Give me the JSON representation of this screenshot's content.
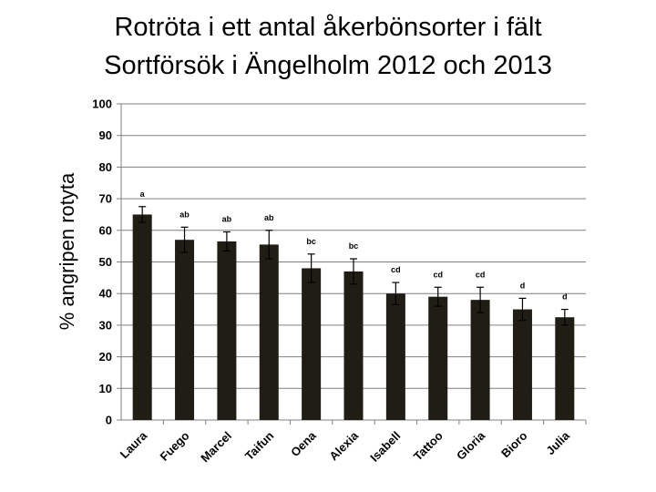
{
  "chart_data": {
    "type": "bar",
    "title": [
      "Rotröta i ett antal åkerbönsorter i fält",
      "Sortförsök i Ängelholm 2012 och 2013"
    ],
    "xlabel": "",
    "ylabel": "% angripen rotyta",
    "ylim": [
      0,
      100
    ],
    "yticks": [
      0,
      10,
      20,
      30,
      40,
      50,
      60,
      70,
      80,
      90,
      100
    ],
    "grid": "horizontal",
    "categories": [
      "Laura",
      "Fuego",
      "Marcel",
      "Taifun",
      "Oena",
      "Alexia",
      "Isabell",
      "Tattoo",
      "Gloria",
      "Bioro",
      "Julia"
    ],
    "values": [
      65,
      57,
      56.5,
      55.5,
      48,
      47,
      40,
      39,
      38,
      35,
      32.5
    ],
    "error": [
      2.5,
      4,
      3,
      4.5,
      4.5,
      4,
      3.5,
      3,
      4,
      3.5,
      2.5
    ],
    "significance_labels": [
      "a",
      "ab",
      "ab",
      "ab",
      "bc",
      "bc",
      "cd",
      "cd",
      "cd",
      "d",
      "d"
    ],
    "bar_color": "#1f1d14",
    "legend": "none"
  }
}
